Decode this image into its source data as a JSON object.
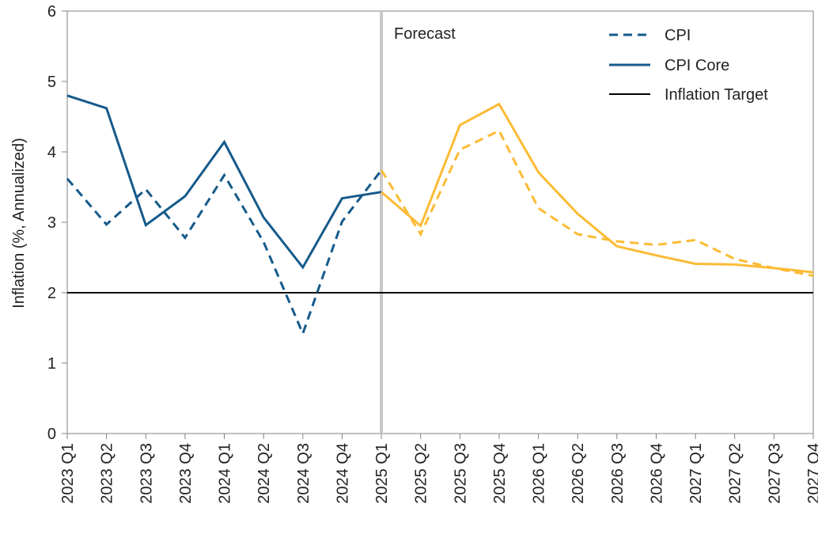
{
  "chart_data": {
    "type": "line",
    "title": "",
    "xlabel": "",
    "ylabel": "Inflation (%, Annualized)",
    "ylim": [
      0,
      6
    ],
    "yticks": [
      0,
      1,
      2,
      3,
      4,
      5,
      6
    ],
    "grid": false,
    "legend_position": "top-right",
    "forecast_start": "2025 Q1",
    "forecast_label": "Forecast",
    "categories": [
      "2023 Q1",
      "2023 Q2",
      "2023 Q3",
      "2023 Q4",
      "2024 Q1",
      "2024 Q2",
      "2024 Q3",
      "2024 Q4",
      "2025 Q1",
      "2025 Q2",
      "2025 Q3",
      "2025 Q4",
      "2026 Q1",
      "2026 Q2",
      "2026 Q3",
      "2026 Q4",
      "2027 Q1",
      "2027 Q2",
      "2027 Q3",
      "2027 Q4"
    ],
    "series": [
      {
        "name": "CPI",
        "style": "dashed",
        "values": [
          3.62,
          2.97,
          3.47,
          2.78,
          3.67,
          2.72,
          1.42,
          3.01,
          3.74,
          2.83,
          4.03,
          4.3,
          3.2,
          2.83,
          2.73,
          2.68,
          2.75,
          2.48,
          2.35,
          2.24
        ]
      },
      {
        "name": "CPI Core",
        "style": "solid",
        "values": [
          4.8,
          4.62,
          2.96,
          3.37,
          4.14,
          3.07,
          2.36,
          3.34,
          3.43,
          2.95,
          4.38,
          4.68,
          3.71,
          3.12,
          2.66,
          2.53,
          2.41,
          2.4,
          2.35,
          2.29
        ]
      },
      {
        "name": "Inflation Target",
        "style": "solid",
        "constant": 2
      }
    ],
    "colors": {
      "historical": "#155a8a",
      "forecast": "#fbbb35",
      "target": "#000000",
      "forecast_line": "#c8c8c8",
      "axis": "#808080"
    }
  }
}
